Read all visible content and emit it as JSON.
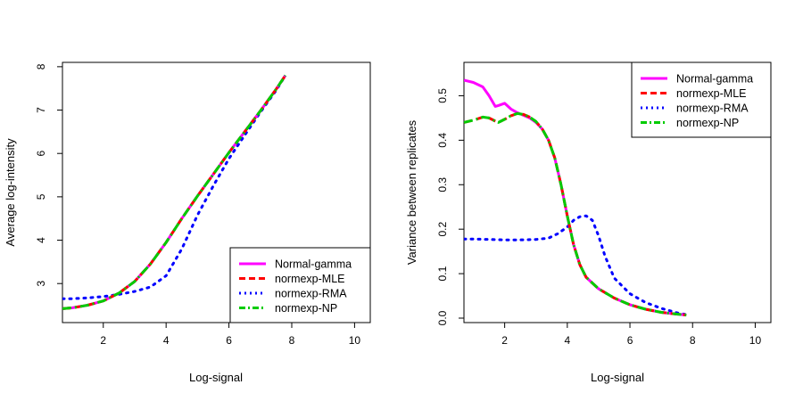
{
  "chart_data": [
    {
      "type": "line",
      "xlabel": "Log-signal",
      "ylabel": "Average log-intensity",
      "xlim": [
        0.7,
        10.5
      ],
      "ylim": [
        2.1,
        8.1
      ],
      "xticks": [
        2,
        4,
        6,
        8,
        10
      ],
      "yticks": [
        3,
        4,
        5,
        6,
        7,
        8
      ],
      "legend_position": "bottom-right",
      "series": [
        {
          "name": "Normal-gamma",
          "color": "#ff00ff",
          "style": "solid",
          "x": [
            0.7,
            1.0,
            1.5,
            2.0,
            2.5,
            3.0,
            3.5,
            4.0,
            4.5,
            5.0,
            5.5,
            6.0,
            6.5,
            7.0,
            7.5,
            7.8
          ],
          "y": [
            2.42,
            2.44,
            2.5,
            2.6,
            2.78,
            3.05,
            3.45,
            3.95,
            4.5,
            5.02,
            5.52,
            6.02,
            6.5,
            6.98,
            7.48,
            7.8
          ]
        },
        {
          "name": "normexp-MLE",
          "color": "#ff0000",
          "style": "dashed",
          "x": [
            0.7,
            1.0,
            1.5,
            2.0,
            2.5,
            3.0,
            3.5,
            4.0,
            4.5,
            5.0,
            5.5,
            6.0,
            6.5,
            7.0,
            7.5,
            7.8
          ],
          "y": [
            2.42,
            2.44,
            2.5,
            2.6,
            2.78,
            3.05,
            3.45,
            3.95,
            4.5,
            5.02,
            5.52,
            6.02,
            6.5,
            6.98,
            7.48,
            7.8
          ]
        },
        {
          "name": "normexp-RMA",
          "color": "#0000ff",
          "style": "dotted",
          "x": [
            0.7,
            1.0,
            1.5,
            2.0,
            2.5,
            3.0,
            3.5,
            4.0,
            4.5,
            5.0,
            5.5,
            6.0,
            6.5,
            7.0,
            7.5,
            7.8
          ],
          "y": [
            2.65,
            2.65,
            2.67,
            2.7,
            2.75,
            2.82,
            2.92,
            3.18,
            3.8,
            4.58,
            5.25,
            5.88,
            6.42,
            6.95,
            7.45,
            7.8
          ]
        },
        {
          "name": "normexp-NP",
          "color": "#00cc00",
          "style": "dashdot",
          "x": [
            0.7,
            1.0,
            1.5,
            2.0,
            2.5,
            3.0,
            3.5,
            4.0,
            4.5,
            5.0,
            5.5,
            6.0,
            6.5,
            7.0,
            7.5,
            7.8
          ],
          "y": [
            2.42,
            2.44,
            2.5,
            2.6,
            2.78,
            3.05,
            3.45,
            3.95,
            4.5,
            5.02,
            5.52,
            6.02,
            6.5,
            6.98,
            7.48,
            7.8
          ]
        }
      ]
    },
    {
      "type": "line",
      "xlabel": "Log-signal",
      "ylabel": "Variance between replicates",
      "xlim": [
        0.7,
        10.5
      ],
      "ylim": [
        -0.01,
        0.575
      ],
      "xticks": [
        2,
        4,
        6,
        8,
        10
      ],
      "yticks": [
        0.0,
        0.1,
        0.2,
        0.3,
        0.4,
        0.5
      ],
      "ytick_labels": [
        "0.0",
        "0.1",
        "0.2",
        "0.3",
        "0.4",
        "0.5"
      ],
      "legend_position": "top-right",
      "series": [
        {
          "name": "Normal-gamma",
          "color": "#ff00ff",
          "style": "solid",
          "x": [
            0.7,
            1.0,
            1.3,
            1.5,
            1.7,
            1.8,
            2.0,
            2.2,
            2.4,
            2.6,
            2.8,
            3.0,
            3.2,
            3.4,
            3.6,
            3.8,
            4.0,
            4.2,
            4.4,
            4.6,
            5.0,
            5.5,
            6.0,
            6.5,
            7.0,
            7.5,
            7.8
          ],
          "y": [
            0.535,
            0.53,
            0.52,
            0.5,
            0.476,
            0.478,
            0.483,
            0.47,
            0.462,
            0.456,
            0.45,
            0.44,
            0.425,
            0.4,
            0.36,
            0.3,
            0.23,
            0.165,
            0.12,
            0.092,
            0.066,
            0.045,
            0.03,
            0.02,
            0.013,
            0.009,
            0.007
          ]
        },
        {
          "name": "normexp-MLE",
          "color": "#ff0000",
          "style": "dashed",
          "x": [
            0.7,
            1.0,
            1.3,
            1.5,
            1.7,
            1.8,
            2.0,
            2.2,
            2.4,
            2.6,
            2.8,
            3.0,
            3.2,
            3.4,
            3.6,
            3.8,
            4.0,
            4.2,
            4.4,
            4.6,
            5.0,
            5.5,
            6.0,
            6.5,
            7.0,
            7.5,
            7.8
          ],
          "y": [
            0.44,
            0.445,
            0.452,
            0.45,
            0.443,
            0.44,
            0.447,
            0.455,
            0.46,
            0.458,
            0.452,
            0.442,
            0.425,
            0.4,
            0.36,
            0.3,
            0.23,
            0.165,
            0.12,
            0.092,
            0.066,
            0.045,
            0.03,
            0.02,
            0.013,
            0.009,
            0.007
          ]
        },
        {
          "name": "normexp-RMA",
          "color": "#0000ff",
          "style": "dotted",
          "x": [
            0.7,
            1.0,
            1.5,
            2.0,
            2.5,
            3.0,
            3.4,
            3.7,
            4.0,
            4.2,
            4.4,
            4.6,
            4.8,
            5.0,
            5.2,
            5.5,
            6.0,
            6.5,
            7.0,
            7.5,
            7.8
          ],
          "y": [
            0.178,
            0.178,
            0.177,
            0.176,
            0.176,
            0.177,
            0.18,
            0.19,
            0.205,
            0.22,
            0.228,
            0.23,
            0.22,
            0.185,
            0.14,
            0.09,
            0.055,
            0.035,
            0.022,
            0.012,
            0.008
          ]
        },
        {
          "name": "normexp-NP",
          "color": "#00cc00",
          "style": "dashdot",
          "x": [
            0.7,
            1.0,
            1.3,
            1.5,
            1.7,
            1.8,
            2.0,
            2.2,
            2.4,
            2.6,
            2.8,
            3.0,
            3.2,
            3.4,
            3.6,
            3.8,
            4.0,
            4.2,
            4.4,
            4.6,
            5.0,
            5.5,
            6.0,
            6.5,
            7.0,
            7.5,
            7.8
          ],
          "y": [
            0.44,
            0.445,
            0.452,
            0.45,
            0.443,
            0.44,
            0.447,
            0.455,
            0.46,
            0.458,
            0.452,
            0.442,
            0.425,
            0.4,
            0.36,
            0.3,
            0.23,
            0.165,
            0.12,
            0.092,
            0.066,
            0.045,
            0.03,
            0.02,
            0.013,
            0.009,
            0.007
          ]
        }
      ]
    }
  ]
}
